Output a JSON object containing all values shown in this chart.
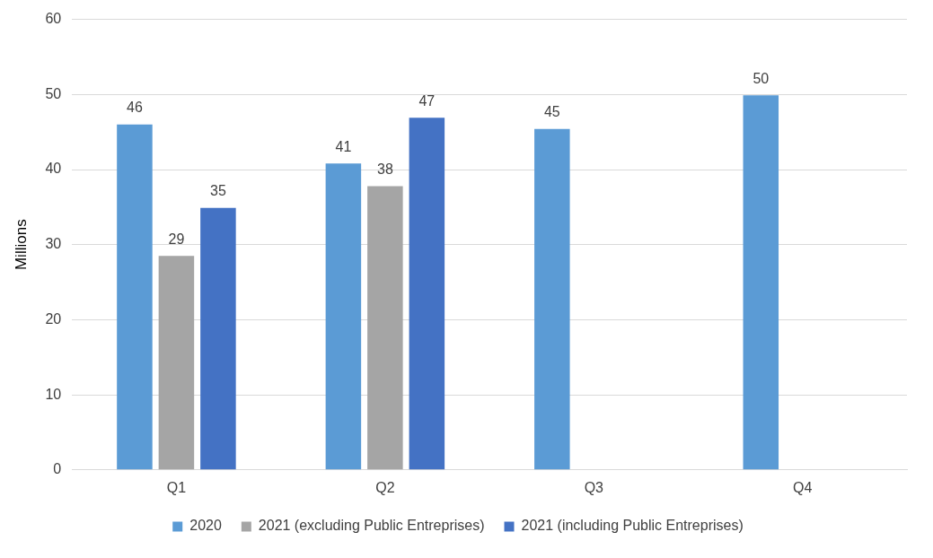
{
  "chart_data": {
    "type": "bar",
    "ylabel": "Millions",
    "categories": [
      "Q1",
      "Q2",
      "Q3",
      "Q4"
    ],
    "series": [
      {
        "name": "2020",
        "color": "#5b9bd5",
        "values": [
          46,
          40.8,
          45.4,
          49.9
        ],
        "value_labels": [
          "46",
          "41",
          "45",
          "50"
        ]
      },
      {
        "name": "2021 (excluding Public Entreprises)",
        "color": "#a5a5a5",
        "values": [
          28.5,
          37.8,
          null,
          null
        ],
        "value_labels": [
          "29",
          "38",
          null,
          null
        ]
      },
      {
        "name": "2021 (including Public Entreprises)",
        "color": "#4472c4",
        "values": [
          34.9,
          46.9,
          null,
          null
        ],
        "value_labels": [
          "35",
          "47",
          null,
          null
        ]
      }
    ],
    "ylim": [
      0,
      60
    ],
    "yticks": [
      0,
      10,
      20,
      30,
      40,
      50,
      60
    ],
    "grid": "y",
    "legend": "bottom"
  }
}
